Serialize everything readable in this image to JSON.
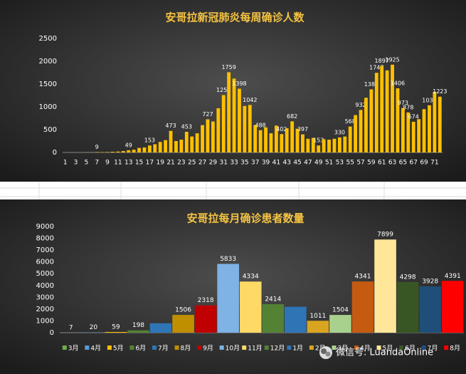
{
  "chart_data": [
    {
      "type": "bar",
      "title": "安哥拉新冠肺炎每周确诊人数",
      "categories": [
        1,
        null,
        3,
        null,
        5,
        null,
        7,
        null,
        9,
        null,
        11,
        null,
        13,
        null,
        15,
        null,
        17,
        null,
        19,
        null,
        21,
        null,
        23,
        null,
        25,
        null,
        27,
        null,
        29,
        null,
        31,
        null,
        33,
        null,
        35,
        null,
        37,
        null,
        39,
        null,
        41,
        null,
        43,
        null,
        45,
        null,
        47,
        null,
        49,
        null,
        51,
        null,
        53,
        null,
        55,
        null,
        57,
        null,
        59,
        null,
        61,
        null,
        63,
        null,
        65,
        null,
        67,
        null,
        69,
        null,
        71,
        null
      ],
      "values": [
        0,
        0,
        0,
        0,
        2,
        4,
        9,
        5,
        10,
        15,
        20,
        30,
        49,
        60,
        100,
        110,
        153,
        180,
        230,
        270,
        473,
        250,
        280,
        453,
        350,
        420,
        600,
        727,
        680,
        970,
        1258,
        1759,
        1620,
        1398,
        1020,
        1042,
        600,
        488,
        550,
        420,
        590,
        402,
        530,
        682,
        520,
        397,
        300,
        320,
        153,
        290,
        280,
        300,
        330,
        350,
        568,
        820,
        932,
        1200,
        1384,
        1747,
        1897,
        1800,
        1925,
        1406,
        973,
        878,
        674,
        730,
        950,
        1035,
        1330,
        1223
      ],
      "value_labels": [
        null,
        null,
        null,
        null,
        null,
        null,
        "9",
        null,
        null,
        null,
        null,
        null,
        "49",
        null,
        null,
        null,
        "153",
        null,
        null,
        null,
        "473",
        null,
        null,
        "453",
        null,
        null,
        null,
        "727",
        null,
        null,
        "1258",
        "1759",
        null,
        "1398",
        null,
        "1042",
        null,
        "488",
        null,
        null,
        null,
        "402",
        null,
        "682",
        null,
        "397",
        null,
        null,
        "153",
        null,
        null,
        null,
        "330",
        null,
        "568",
        null,
        "932",
        null,
        "1384",
        "1747",
        "1897",
        null,
        "1925",
        "1406",
        "973",
        "878",
        "674",
        null,
        null,
        "1035",
        null,
        "1223"
      ],
      "color": "#ffc000",
      "ylim": [
        0,
        2500
      ],
      "yticks": [
        0,
        500,
        1000,
        1500,
        2000,
        2500
      ],
      "grid": false
    },
    {
      "type": "bar",
      "title": "安哥拉每月确诊患者数量",
      "categories": [
        "3月",
        "4月",
        "5月",
        "6月",
        "7月",
        "8月",
        "9月",
        "10月",
        "11月",
        "12月",
        "1月",
        "2月",
        "3月",
        "4月",
        "5月",
        "6月",
        "7月",
        "8月"
      ],
      "values": [
        7,
        20,
        59,
        198,
        800,
        1506,
        2318,
        5833,
        4334,
        2414,
        2200,
        1011,
        1504,
        4341,
        7899,
        4298,
        3928,
        4391
      ],
      "value_labels": [
        "7",
        "20",
        "59",
        "198",
        null,
        "1506",
        "2318",
        "5833",
        "4334",
        "2414",
        null,
        "1011",
        "1504",
        "4341",
        "7899",
        "4298",
        "3928",
        "4391"
      ],
      "colors": [
        "#70ad47",
        "#5b9bd5",
        "#ffc000",
        "#548235",
        "#2e75b6",
        "#bf8f00",
        "#c00000",
        "#7fb2e5",
        "#ffd966",
        "#548235",
        "#2e75b6",
        "#d9a520",
        "#a9d18e",
        "#c55a11",
        "#ffe699",
        "#375623",
        "#1f4e79",
        "#ff0000"
      ],
      "ylim": [
        0,
        9000
      ],
      "yticks": [
        0,
        1000,
        2000,
        3000,
        4000,
        5000,
        6000,
        7000,
        8000,
        9000
      ],
      "grid": false,
      "watermark": "微信号: LuandaOnline"
    }
  ]
}
